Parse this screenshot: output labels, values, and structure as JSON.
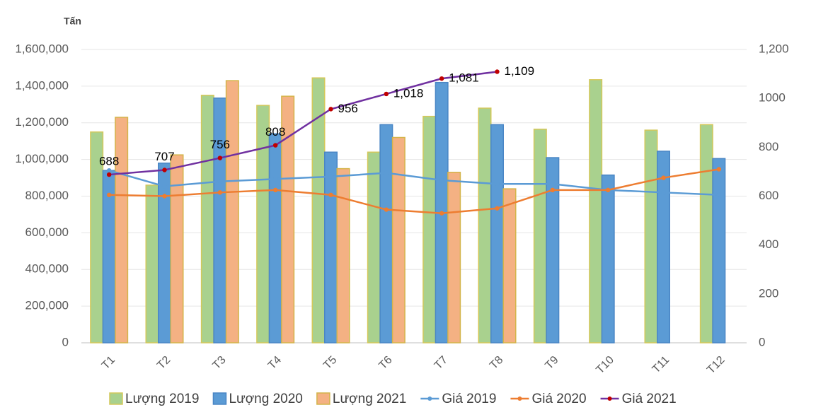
{
  "chart_data": {
    "type": "bar",
    "y_axis_label": "Tấn",
    "categories": [
      "T1",
      "T2",
      "T3",
      "T4",
      "T5",
      "T6",
      "T7",
      "T8",
      "T9",
      "T10",
      "T11",
      "T12"
    ],
    "ylim": [
      0,
      1600000
    ],
    "yticks": [
      0,
      {
        "value": 200000,
        "label": "200,000"
      },
      {
        "value": 400000,
        "label": "400,000"
      },
      {
        "value": 600000,
        "label": "600,000"
      },
      {
        "value": 800000,
        "label": "800,000"
      },
      {
        "value": 1000000,
        "label": "1,000,000"
      },
      {
        "value": 1200000,
        "label": "1,200,000"
      },
      {
        "value": 1400000,
        "label": "1,400,000"
      },
      {
        "value": 1600000,
        "label": "1,600,000"
      }
    ],
    "y2lim": [
      0,
      1200
    ],
    "y2ticks": [
      0,
      200,
      400,
      600,
      800,
      1000,
      {
        "value": 1200,
        "label": "1,200"
      }
    ],
    "grid": true,
    "legend": "bottom",
    "series": [
      {
        "name": "Lượng 2019",
        "type": "bar",
        "color": "#a9d18e",
        "edge": "#d4c85a",
        "values": [
          1150000,
          860000,
          1350000,
          1295000,
          1445000,
          1040000,
          1235000,
          1280000,
          1165000,
          1435000,
          1160000,
          1190000
        ]
      },
      {
        "name": "Lượng 2020",
        "type": "bar",
        "color": "#5b9bd5",
        "edge": "#4a86c5",
        "values": [
          940000,
          980000,
          1335000,
          1140000,
          1040000,
          1190000,
          1420000,
          1190000,
          1010000,
          915000,
          1045000,
          1005000
        ]
      },
      {
        "name": "Lượng 2021",
        "type": "bar",
        "color": "#f4b183",
        "edge": "#d4b44a",
        "values": [
          1230000,
          1025000,
          1430000,
          1345000,
          950000,
          1120000,
          930000,
          840000,
          null,
          null,
          null,
          null
        ]
      },
      {
        "name": "Giá 2019",
        "type": "line",
        "axis": "y2",
        "color": "#5b9bd5",
        "values": [
          705,
          640,
          660,
          670,
          680,
          695,
          665,
          650,
          650,
          625,
          615,
          605
        ]
      },
      {
        "name": "Giá 2020",
        "type": "line",
        "axis": "y2",
        "color": "#ed7d31",
        "values": [
          605,
          600,
          615,
          625,
          605,
          545,
          530,
          550,
          625,
          625,
          675,
          710
        ]
      },
      {
        "name": "Giá 2021",
        "type": "line",
        "axis": "y2",
        "color": "#7030a0",
        "marker_color": "#c00000",
        "values": [
          688,
          707,
          756,
          808,
          956,
          1018,
          1081,
          1109,
          null,
          null,
          null,
          null
        ],
        "value_labels": [
          "688",
          "707",
          "756",
          "808",
          "956",
          "1,018",
          "1,081",
          "1,109",
          null,
          null,
          null,
          null
        ]
      }
    ]
  }
}
